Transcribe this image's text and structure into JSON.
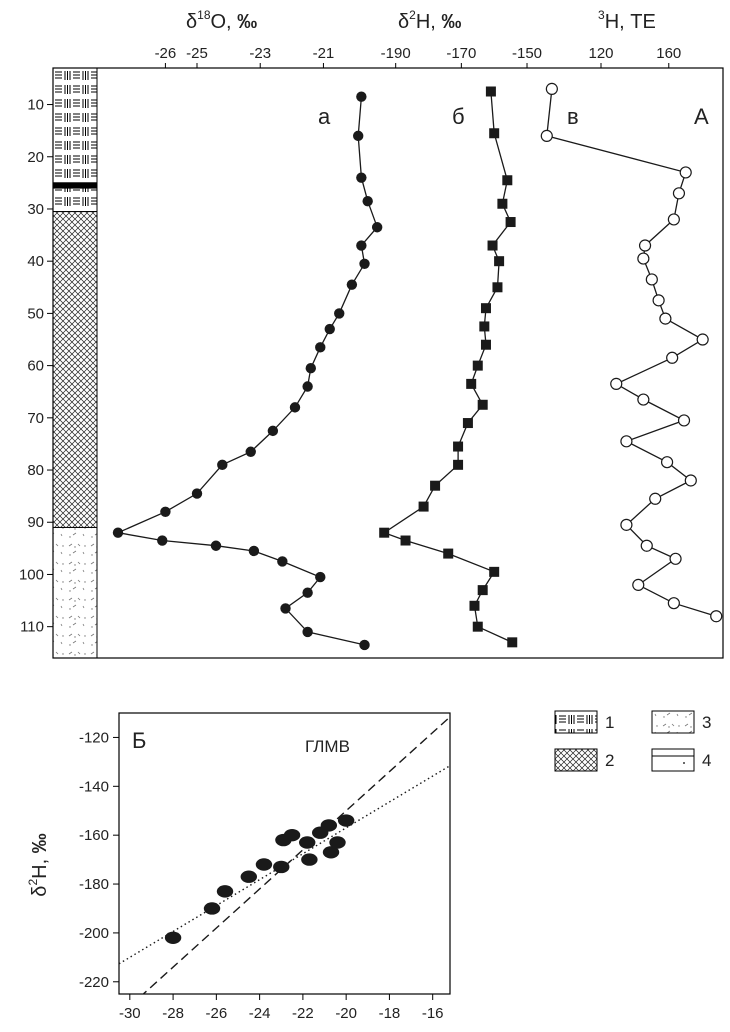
{
  "colors": {
    "ink": "#1a1a1a",
    "frame": "#000000",
    "background": "#ffffff"
  },
  "panel_top": {
    "header_d18O": {
      "delta": "δ",
      "sup": "18",
      "sym": "O, ",
      "unit": "‰"
    },
    "header_d2H": {
      "delta": "δ",
      "sup": "2",
      "sym": "H, ",
      "unit": "‰"
    },
    "header_3H": {
      "sup": "3",
      "sym": "H, ТЕ"
    },
    "letters": {
      "a": "а",
      "b": "б",
      "v": "в",
      "A": "А"
    }
  },
  "panel_bottom": {
    "letter": "Б",
    "line_label": "ГЛМВ",
    "ylabel": {
      "delta": "δ",
      "sup": "2",
      "sym": "H, ",
      "unit": "‰"
    }
  },
  "legend": [
    {
      "num": "1",
      "pattern": "layered"
    },
    {
      "num": "2",
      "pattern": "crosshatch"
    },
    {
      "num": "3",
      "pattern": "dotted-sand"
    },
    {
      "num": "4",
      "pattern": "blank-lined"
    }
  ],
  "chart_data": [
    {
      "type": "line",
      "title": "а",
      "y_axis": {
        "label": "",
        "range": [
          3,
          116
        ],
        "ticks": [
          10,
          20,
          30,
          40,
          50,
          60,
          70,
          80,
          90,
          100,
          110
        ],
        "inverted": true
      },
      "x_axis": {
        "label": "δ18O, ‰",
        "range": [
          -27.5,
          -19.4
        ],
        "ticks": [
          -26,
          -25,
          -23,
          -21
        ],
        "position": "top"
      },
      "series": [
        {
          "marker": "filled-circle",
          "points": [
            [
              -19.8,
              8.5
            ],
            [
              -19.9,
              16
            ],
            [
              -19.8,
              24
            ],
            [
              -19.6,
              28.5
            ],
            [
              -19.3,
              33.5
            ],
            [
              -19.8,
              37
            ],
            [
              -19.7,
              40.5
            ],
            [
              -20.1,
              44.5
            ],
            [
              -20.5,
              50
            ],
            [
              -20.8,
              53
            ],
            [
              -21.1,
              56.5
            ],
            [
              -21.4,
              60.5
            ],
            [
              -21.5,
              64
            ],
            [
              -21.9,
              68
            ],
            [
              -22.6,
              72.5
            ],
            [
              -23.3,
              76.5
            ],
            [
              -24.2,
              79
            ],
            [
              -25.0,
              84.5
            ],
            [
              -26.0,
              88
            ],
            [
              -27.5,
              92
            ],
            [
              -26.1,
              93.5
            ],
            [
              -24.4,
              94.5
            ],
            [
              -23.2,
              95.5
            ],
            [
              -22.3,
              97.5
            ],
            [
              -21.1,
              100.5
            ],
            [
              -21.5,
              103.5
            ],
            [
              -22.2,
              106.5
            ],
            [
              -21.5,
              111
            ],
            [
              -19.7,
              113.5
            ]
          ]
        }
      ]
    },
    {
      "type": "line",
      "title": "б",
      "y_axis": {
        "label": "",
        "range": [
          3,
          116
        ],
        "inverted": true
      },
      "x_axis": {
        "label": "δ2H, ‰",
        "range": [
          -203,
          -143
        ],
        "ticks": [
          -190,
          -170,
          -150
        ],
        "position": "top"
      },
      "series": [
        {
          "marker": "filled-square",
          "points": [
            [
              -161,
              7.5
            ],
            [
              -160,
              15.5
            ],
            [
              -156,
              24.5
            ],
            [
              -157.5,
              29
            ],
            [
              -155,
              32.5
            ],
            [
              -160.5,
              37
            ],
            [
              -158.5,
              40
            ],
            [
              -159,
              45
            ],
            [
              -162.5,
              49
            ],
            [
              -163,
              52.5
            ],
            [
              -162.5,
              56
            ],
            [
              -165,
              60
            ],
            [
              -167,
              63.5
            ],
            [
              -163.5,
              67.5
            ],
            [
              -168,
              71
            ],
            [
              -171,
              75.5
            ],
            [
              -171,
              79
            ],
            [
              -178,
              83
            ],
            [
              -181.5,
              87
            ],
            [
              -193.5,
              92
            ],
            [
              -187,
              93.5
            ],
            [
              -174,
              96
            ],
            [
              -160,
              99.5
            ],
            [
              -163.5,
              103
            ],
            [
              -166,
              106
            ],
            [
              -165,
              110
            ],
            [
              -154.5,
              113
            ]
          ]
        }
      ]
    },
    {
      "type": "line",
      "title": "в",
      "y_axis": {
        "label": "",
        "range": [
          3,
          116
        ],
        "inverted": true
      },
      "x_axis": {
        "label": "3H, ТЕ",
        "range": [
          84,
          192
        ],
        "ticks": [
          120,
          160
        ],
        "position": "top"
      },
      "series": [
        {
          "marker": "open-circle",
          "points": [
            [
              91,
              7
            ],
            [
              88,
              16
            ],
            [
              170,
              23
            ],
            [
              166,
              27
            ],
            [
              163,
              32
            ],
            [
              146,
              37
            ],
            [
              145,
              39.5
            ],
            [
              150,
              43.5
            ],
            [
              154,
              47.5
            ],
            [
              158,
              51
            ],
            [
              180,
              55
            ],
            [
              162,
              58.5
            ],
            [
              129,
              63.5
            ],
            [
              145,
              66.5
            ],
            [
              169,
              70.5
            ],
            [
              135,
              74.5
            ],
            [
              159,
              78.5
            ],
            [
              173,
              82
            ],
            [
              152,
              85.5
            ],
            [
              135,
              90.5
            ],
            [
              147,
              94.5
            ],
            [
              164,
              97
            ],
            [
              142,
              102
            ],
            [
              163,
              105.5
            ],
            [
              188,
              108
            ]
          ]
        }
      ]
    },
    {
      "type": "scatter",
      "title": "Б",
      "x_axis": {
        "label": "",
        "range": [
          -30.5,
          -15.2
        ],
        "ticks": [
          -30,
          -28,
          -26,
          -24,
          -22,
          -20,
          -18,
          -16
        ]
      },
      "y_axis": {
        "label": "δ2H, ‰",
        "range": [
          -225,
          -110
        ],
        "ticks": [
          -220,
          -200,
          -180,
          -160,
          -140,
          -120
        ]
      },
      "points": [
        [
          -28.0,
          -202
        ],
        [
          -26.2,
          -190
        ],
        [
          -25.6,
          -183
        ],
        [
          -24.5,
          -177
        ],
        [
          -23.8,
          -172
        ],
        [
          -23.0,
          -173
        ],
        [
          -22.9,
          -162
        ],
        [
          -22.5,
          -160
        ],
        [
          -21.8,
          -163
        ],
        [
          -21.7,
          -170
        ],
        [
          -21.2,
          -159
        ],
        [
          -20.8,
          -156
        ],
        [
          -20.7,
          -167
        ],
        [
          -20.4,
          -163
        ],
        [
          -20.0,
          -154
        ]
      ],
      "lines": [
        {
          "name": "ГЛМВ",
          "style": "dashed",
          "slope": 8,
          "intercept": 10
        },
        {
          "name": "",
          "style": "dotted",
          "slope": 5.3,
          "intercept": -51
        }
      ]
    }
  ]
}
